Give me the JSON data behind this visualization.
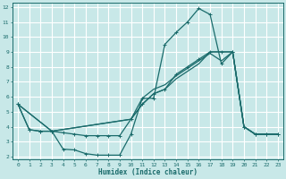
{
  "xlabel": "Humidex (Indice chaleur)",
  "bg_color": "#c8e8e8",
  "grid_color": "#ffffff",
  "line_color": "#1a6b6b",
  "xlim": [
    -0.5,
    23.5
  ],
  "ylim": [
    1.8,
    12.3
  ],
  "xticks": [
    0,
    1,
    2,
    3,
    4,
    5,
    6,
    7,
    8,
    9,
    10,
    11,
    12,
    13,
    14,
    15,
    16,
    17,
    18,
    19,
    20,
    21,
    22,
    23
  ],
  "yticks": [
    2,
    3,
    4,
    5,
    6,
    7,
    8,
    9,
    10,
    11,
    12
  ],
  "line1_x": [
    0,
    1,
    2,
    3,
    4,
    5,
    6,
    7,
    8,
    9,
    10,
    11,
    12,
    13,
    14,
    15,
    16,
    17,
    18,
    19,
    20,
    21,
    22,
    23
  ],
  "line1_y": [
    5.5,
    3.8,
    3.7,
    3.7,
    2.5,
    2.45,
    2.2,
    2.1,
    2.1,
    2.1,
    3.5,
    5.9,
    5.9,
    9.5,
    10.3,
    11.0,
    11.9,
    11.5,
    8.2,
    9.0,
    4.0,
    3.5,
    3.5,
    3.5
  ],
  "line2_x": [
    0,
    3,
    10,
    11,
    12,
    13,
    14,
    15,
    16,
    17,
    18,
    19,
    20,
    21,
    22,
    23
  ],
  "line2_y": [
    5.5,
    3.7,
    4.5,
    5.9,
    6.5,
    6.8,
    7.4,
    7.9,
    8.4,
    8.9,
    8.4,
    9.0,
    4.0,
    3.5,
    3.5,
    3.5
  ],
  "line3_x": [
    0,
    3,
    10,
    11,
    12,
    13,
    14,
    15,
    16,
    17,
    18,
    19,
    20,
    21,
    22,
    23
  ],
  "line3_y": [
    5.5,
    3.7,
    4.5,
    5.5,
    6.2,
    6.5,
    7.2,
    7.7,
    8.2,
    9.0,
    9.0,
    9.0,
    4.0,
    3.5,
    3.5,
    3.5
  ],
  "line4_x": [
    0,
    1,
    2,
    3,
    4,
    5,
    6,
    7,
    8,
    9,
    10,
    11,
    12,
    13,
    14,
    15,
    16,
    17,
    18,
    19,
    20,
    21,
    22,
    23
  ],
  "line4_y": [
    5.5,
    3.8,
    3.7,
    3.7,
    3.6,
    3.5,
    3.4,
    3.4,
    3.4,
    3.4,
    4.5,
    5.5,
    6.2,
    6.5,
    7.5,
    8.0,
    8.5,
    9.0,
    9.0,
    9.0,
    4.0,
    3.5,
    3.5,
    3.5
  ]
}
